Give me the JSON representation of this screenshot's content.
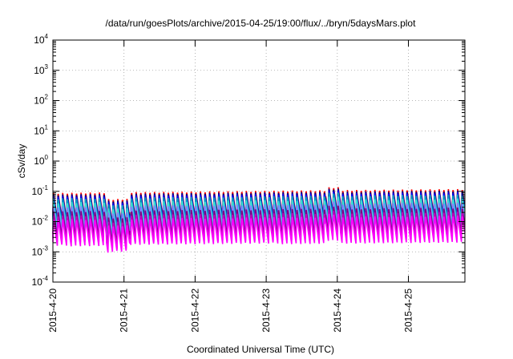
{
  "chart_data": {
    "type": "line",
    "title": "/data/run/goesPlots/archive/2015-04-25/19:00/flux/../bryn/5daysMars.plot",
    "xlabel": "Coordinated Universal Time (UTC)",
    "ylabel": "cSv/day",
    "yscale": "log",
    "ylim": [
      0.0001,
      10000
    ],
    "xlim": [
      "2015-04-20 00:00",
      "2015-04-25 19:00"
    ],
    "grid": true,
    "legend": "none",
    "y_ticks": [
      {
        "base": "10",
        "exp": "-4"
      },
      {
        "base": "10",
        "exp": "-3"
      },
      {
        "base": "10",
        "exp": "-2"
      },
      {
        "base": "10",
        "exp": "-1"
      },
      {
        "base": "10",
        "exp": "0"
      },
      {
        "base": "10",
        "exp": "1"
      },
      {
        "base": "10",
        "exp": "2"
      },
      {
        "base": "10",
        "exp": "3"
      },
      {
        "base": "10",
        "exp": "4"
      }
    ],
    "x_ticks": [
      "2015-4-20",
      "2015-4-21",
      "2015-4-22",
      "2015-4-23",
      "2015-4-24",
      "2015-4-25"
    ],
    "series_note": "Sawtooth flux traces with ~1.5 h period; peaks spike then decay.",
    "series": [
      {
        "color": "#ff0000",
        "base": 0.045
      },
      {
        "color": "#000080",
        "base": 0.04
      },
      {
        "color": "#0000ff",
        "base": 0.035
      },
      {
        "color": "#00a0c0",
        "base": 0.03
      },
      {
        "color": "#40e0d0",
        "base": 0.022
      },
      {
        "color": "#8080ff",
        "base": 0.016
      },
      {
        "color": "#800080",
        "base": 0.011
      },
      {
        "color": "#c000c0",
        "base": 0.008
      },
      {
        "color": "#ff00ff",
        "base": 0.006
      }
    ]
  }
}
